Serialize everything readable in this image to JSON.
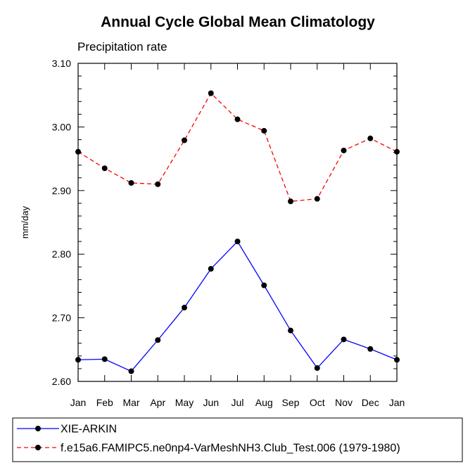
{
  "chart_data": {
    "type": "line",
    "title": "Annual Cycle Global Mean Climatology",
    "subtitle": "Precipitation rate",
    "xlabel": "",
    "ylabel": "mm/day",
    "categories": [
      "Jan",
      "Feb",
      "Mar",
      "Apr",
      "May",
      "Jun",
      "Jul",
      "Aug",
      "Sep",
      "Oct",
      "Nov",
      "Dec",
      "Jan"
    ],
    "ylim": [
      2.6,
      3.1
    ],
    "yticks": [
      "2.60",
      "2.70",
      "2.80",
      "2.90",
      "3.00",
      "3.10"
    ],
    "grid": false,
    "legend_position": "bottom",
    "series": [
      {
        "name": "XIE-ARKIN",
        "color": "#0000ff",
        "dash": "solid",
        "marker": "filled-circle",
        "values": [
          2.634,
          2.635,
          2.616,
          2.665,
          2.716,
          2.777,
          2.82,
          2.751,
          2.68,
          2.621,
          2.666,
          2.651,
          2.634
        ]
      },
      {
        "name": "f.e15a6.FAMIPC5.ne0np4-VarMeshNH3.Club_Test.006 (1979-1980)",
        "color": "#ff0000",
        "dash": "dashed",
        "marker": "filled-circle",
        "values": [
          2.961,
          2.935,
          2.912,
          2.91,
          2.979,
          3.053,
          3.012,
          2.994,
          2.883,
          2.887,
          2.963,
          2.982,
          2.961
        ]
      }
    ]
  }
}
